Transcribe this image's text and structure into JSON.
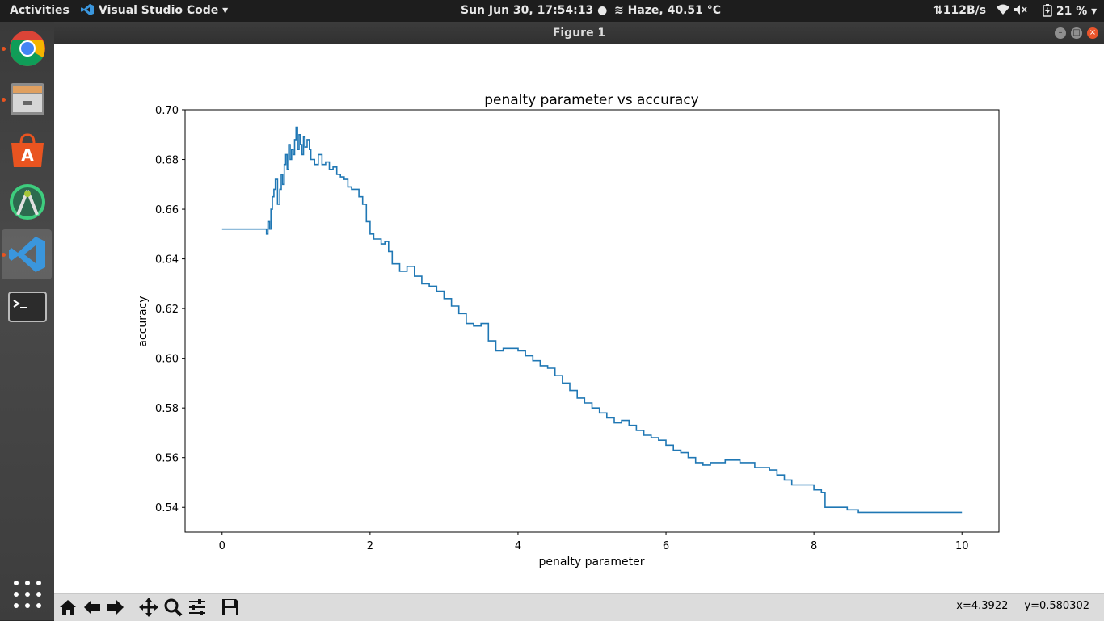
{
  "topbar": {
    "activities": "Activities",
    "app_name": "Visual Studio Code",
    "clock": "Sun Jun 30, 17:54:13",
    "weather": "Haze, 40.51 °C",
    "net_speed": "112B/s",
    "battery": "21 %"
  },
  "dock": {
    "items": [
      "chrome-icon",
      "files-icon",
      "software-center-icon",
      "android-studio-icon",
      "vscode-icon",
      "terminal-icon",
      "show-apps-icon"
    ]
  },
  "window": {
    "title": "Figure 1"
  },
  "toolbar": {
    "buttons": [
      "home-icon",
      "back-icon",
      "forward-icon",
      "pan-icon",
      "zoom-icon",
      "configure-subplots-icon",
      "save-icon"
    ],
    "coord_x": "x=4.3922",
    "coord_y": "y=0.580302"
  },
  "colors": {
    "line": "#1f77b4",
    "topbar": "#1d1d1d",
    "accent": "#e95420"
  },
  "chart_data": {
    "type": "line",
    "title": "penalty parameter vs accuracy",
    "xlabel": "penalty parameter",
    "ylabel": "accuracy",
    "xlim": [
      -0.5,
      10.5
    ],
    "ylim": [
      0.53,
      0.7
    ],
    "xticks": [
      0,
      2,
      4,
      6,
      8,
      10
    ],
    "yticks": [
      0.54,
      0.56,
      0.58,
      0.6,
      0.62,
      0.64,
      0.66,
      0.68,
      0.7
    ],
    "grid": false,
    "series": [
      {
        "x": [
          0.0,
          0.1,
          0.2,
          0.3,
          0.4,
          0.5,
          0.58,
          0.6,
          0.62,
          0.64,
          0.66,
          0.68,
          0.7,
          0.72,
          0.75,
          0.78,
          0.8,
          0.82,
          0.84,
          0.86,
          0.88,
          0.9,
          0.92,
          0.94,
          0.96,
          0.98,
          1.0,
          1.02,
          1.04,
          1.06,
          1.08,
          1.1,
          1.12,
          1.15,
          1.18,
          1.2,
          1.25,
          1.3,
          1.35,
          1.4,
          1.45,
          1.5,
          1.55,
          1.6,
          1.65,
          1.7,
          1.75,
          1.8,
          1.85,
          1.9,
          1.95,
          2.0,
          2.05,
          2.1,
          2.15,
          2.2,
          2.25,
          2.3,
          2.4,
          2.5,
          2.6,
          2.7,
          2.8,
          2.9,
          3.0,
          3.1,
          3.2,
          3.3,
          3.4,
          3.5,
          3.6,
          3.7,
          3.8,
          3.9,
          4.0,
          4.1,
          4.2,
          4.3,
          4.4,
          4.5,
          4.6,
          4.7,
          4.8,
          4.9,
          5.0,
          5.1,
          5.2,
          5.3,
          5.4,
          5.5,
          5.6,
          5.7,
          5.8,
          5.9,
          6.0,
          6.1,
          6.2,
          6.3,
          6.4,
          6.5,
          6.6,
          6.8,
          7.0,
          7.2,
          7.4,
          7.5,
          7.6,
          7.7,
          7.8,
          7.9,
          8.0,
          8.1,
          8.15,
          8.3,
          8.45,
          8.6,
          9.0,
          9.5,
          10.0
        ],
        "y": [
          0.652,
          0.652,
          0.652,
          0.652,
          0.652,
          0.652,
          0.652,
          0.65,
          0.655,
          0.652,
          0.66,
          0.665,
          0.668,
          0.672,
          0.662,
          0.668,
          0.674,
          0.67,
          0.678,
          0.682,
          0.676,
          0.686,
          0.68,
          0.684,
          0.682,
          0.688,
          0.693,
          0.684,
          0.69,
          0.686,
          0.682,
          0.689,
          0.685,
          0.688,
          0.684,
          0.68,
          0.678,
          0.682,
          0.678,
          0.679,
          0.676,
          0.677,
          0.674,
          0.673,
          0.672,
          0.669,
          0.668,
          0.668,
          0.665,
          0.662,
          0.655,
          0.65,
          0.648,
          0.648,
          0.646,
          0.647,
          0.643,
          0.638,
          0.635,
          0.637,
          0.633,
          0.63,
          0.629,
          0.627,
          0.624,
          0.621,
          0.618,
          0.614,
          0.613,
          0.614,
          0.607,
          0.603,
          0.604,
          0.604,
          0.603,
          0.601,
          0.599,
          0.597,
          0.596,
          0.593,
          0.59,
          0.587,
          0.584,
          0.582,
          0.58,
          0.578,
          0.576,
          0.574,
          0.575,
          0.573,
          0.571,
          0.569,
          0.568,
          0.567,
          0.565,
          0.563,
          0.562,
          0.56,
          0.558,
          0.557,
          0.558,
          0.559,
          0.558,
          0.556,
          0.555,
          0.553,
          0.551,
          0.549,
          0.549,
          0.549,
          0.547,
          0.546,
          0.54,
          0.54,
          0.539,
          0.538,
          0.538,
          0.538,
          0.538
        ]
      }
    ]
  }
}
